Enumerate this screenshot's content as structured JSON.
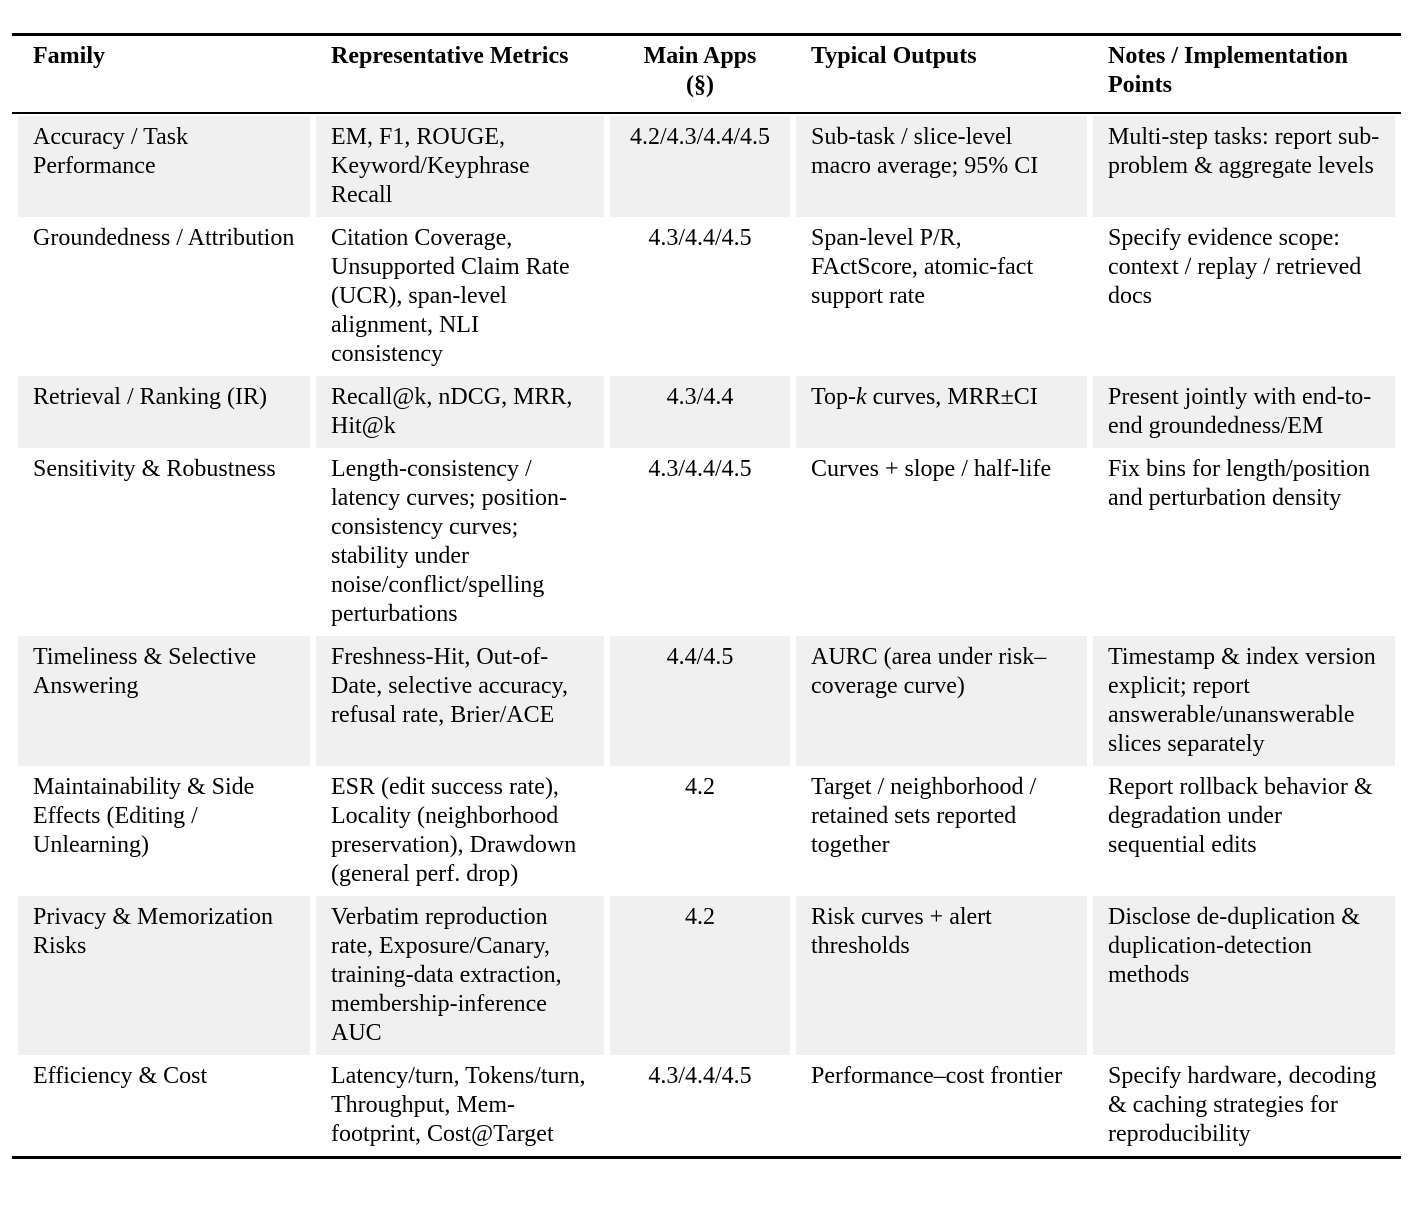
{
  "colors": {
    "background": "#ffffff",
    "row_shade": "#f0f0f0",
    "rule": "#000000",
    "text": "#000000"
  },
  "table": {
    "header": {
      "family": "Family",
      "metrics": "Representative Metrics",
      "apps_line1": "Main Apps",
      "apps_line2": "(§)",
      "outputs": "Typical Outputs",
      "notes": "Notes / Implementation Points"
    },
    "rows": [
      {
        "shaded": true,
        "family": "Accuracy / Task Performance",
        "metrics": "EM, F1, ROUGE, Keyword/Keyphrase Recall",
        "apps": "4.2/4.3/4.4/4.5",
        "outputs": "Sub-task / slice-level macro average; 95% CI",
        "notes": "Multi-step tasks: report sub-problem & aggregate levels"
      },
      {
        "shaded": false,
        "family": "Groundedness / Attribution",
        "metrics": "Citation Coverage, Unsupported Claim Rate (UCR), span-level alignment, NLI consistency",
        "apps": "4.3/4.4/4.5",
        "outputs": "Span-level P/R, FActScore, atomic-fact support rate",
        "notes": "Specify evidence scope: context / replay / retrieved docs"
      },
      {
        "shaded": true,
        "family": "Retrieval / Ranking (IR)",
        "metrics": "Recall@k, nDCG, MRR, Hit@k",
        "apps": "4.3/4.4",
        "outputs": "Top-k curves, MRR±CI",
        "outputs_html": "Top-<i>k</i> curves, MRR±CI",
        "notes": "Present jointly with end-to-end groundedness/EM"
      },
      {
        "shaded": false,
        "family": "Sensitivity & Robustness",
        "metrics": "Length-consistency / latency curves; position-consistency curves; stability under noise/conflict/spelling perturbations",
        "apps": "4.3/4.4/4.5",
        "outputs": "Curves + slope / half-life",
        "notes": "Fix bins for length/position and perturbation density"
      },
      {
        "shaded": true,
        "family": "Timeliness & Selective Answering",
        "metrics": "Freshness-Hit, Out-of-Date, selective accuracy, refusal rate, Brier/ACE",
        "apps": "4.4/4.5",
        "outputs": "AURC (area under risk–coverage curve)",
        "notes": "Timestamp & index version explicit; report answerable/unanswerable slices separately"
      },
      {
        "shaded": false,
        "family": "Maintainability & Side Effects (Editing / Unlearning)",
        "metrics": "ESR (edit success rate), Locality (neighborhood preservation), Drawdown (general perf. drop)",
        "apps": "4.2",
        "outputs": "Target / neighborhood / retained sets reported together",
        "notes": "Report rollback behavior & degradation under sequential edits"
      },
      {
        "shaded": true,
        "family": "Privacy & Memorization Risks",
        "metrics": "Verbatim reproduction rate, Exposure/Canary, training-data extraction, membership-inference AUC",
        "apps": "4.2",
        "outputs": "Risk curves + alert thresholds",
        "notes": "Disclose de-duplication & duplication-detection methods"
      },
      {
        "shaded": false,
        "family": "Efficiency & Cost",
        "metrics": "Latency/turn, Tokens/turn, Throughput, Mem-footprint, Cost@Target",
        "apps": "4.3/4.4/4.5",
        "outputs": "Performance–cost frontier",
        "notes": "Specify hardware, decoding & caching strategies for reproducibility"
      }
    ]
  }
}
